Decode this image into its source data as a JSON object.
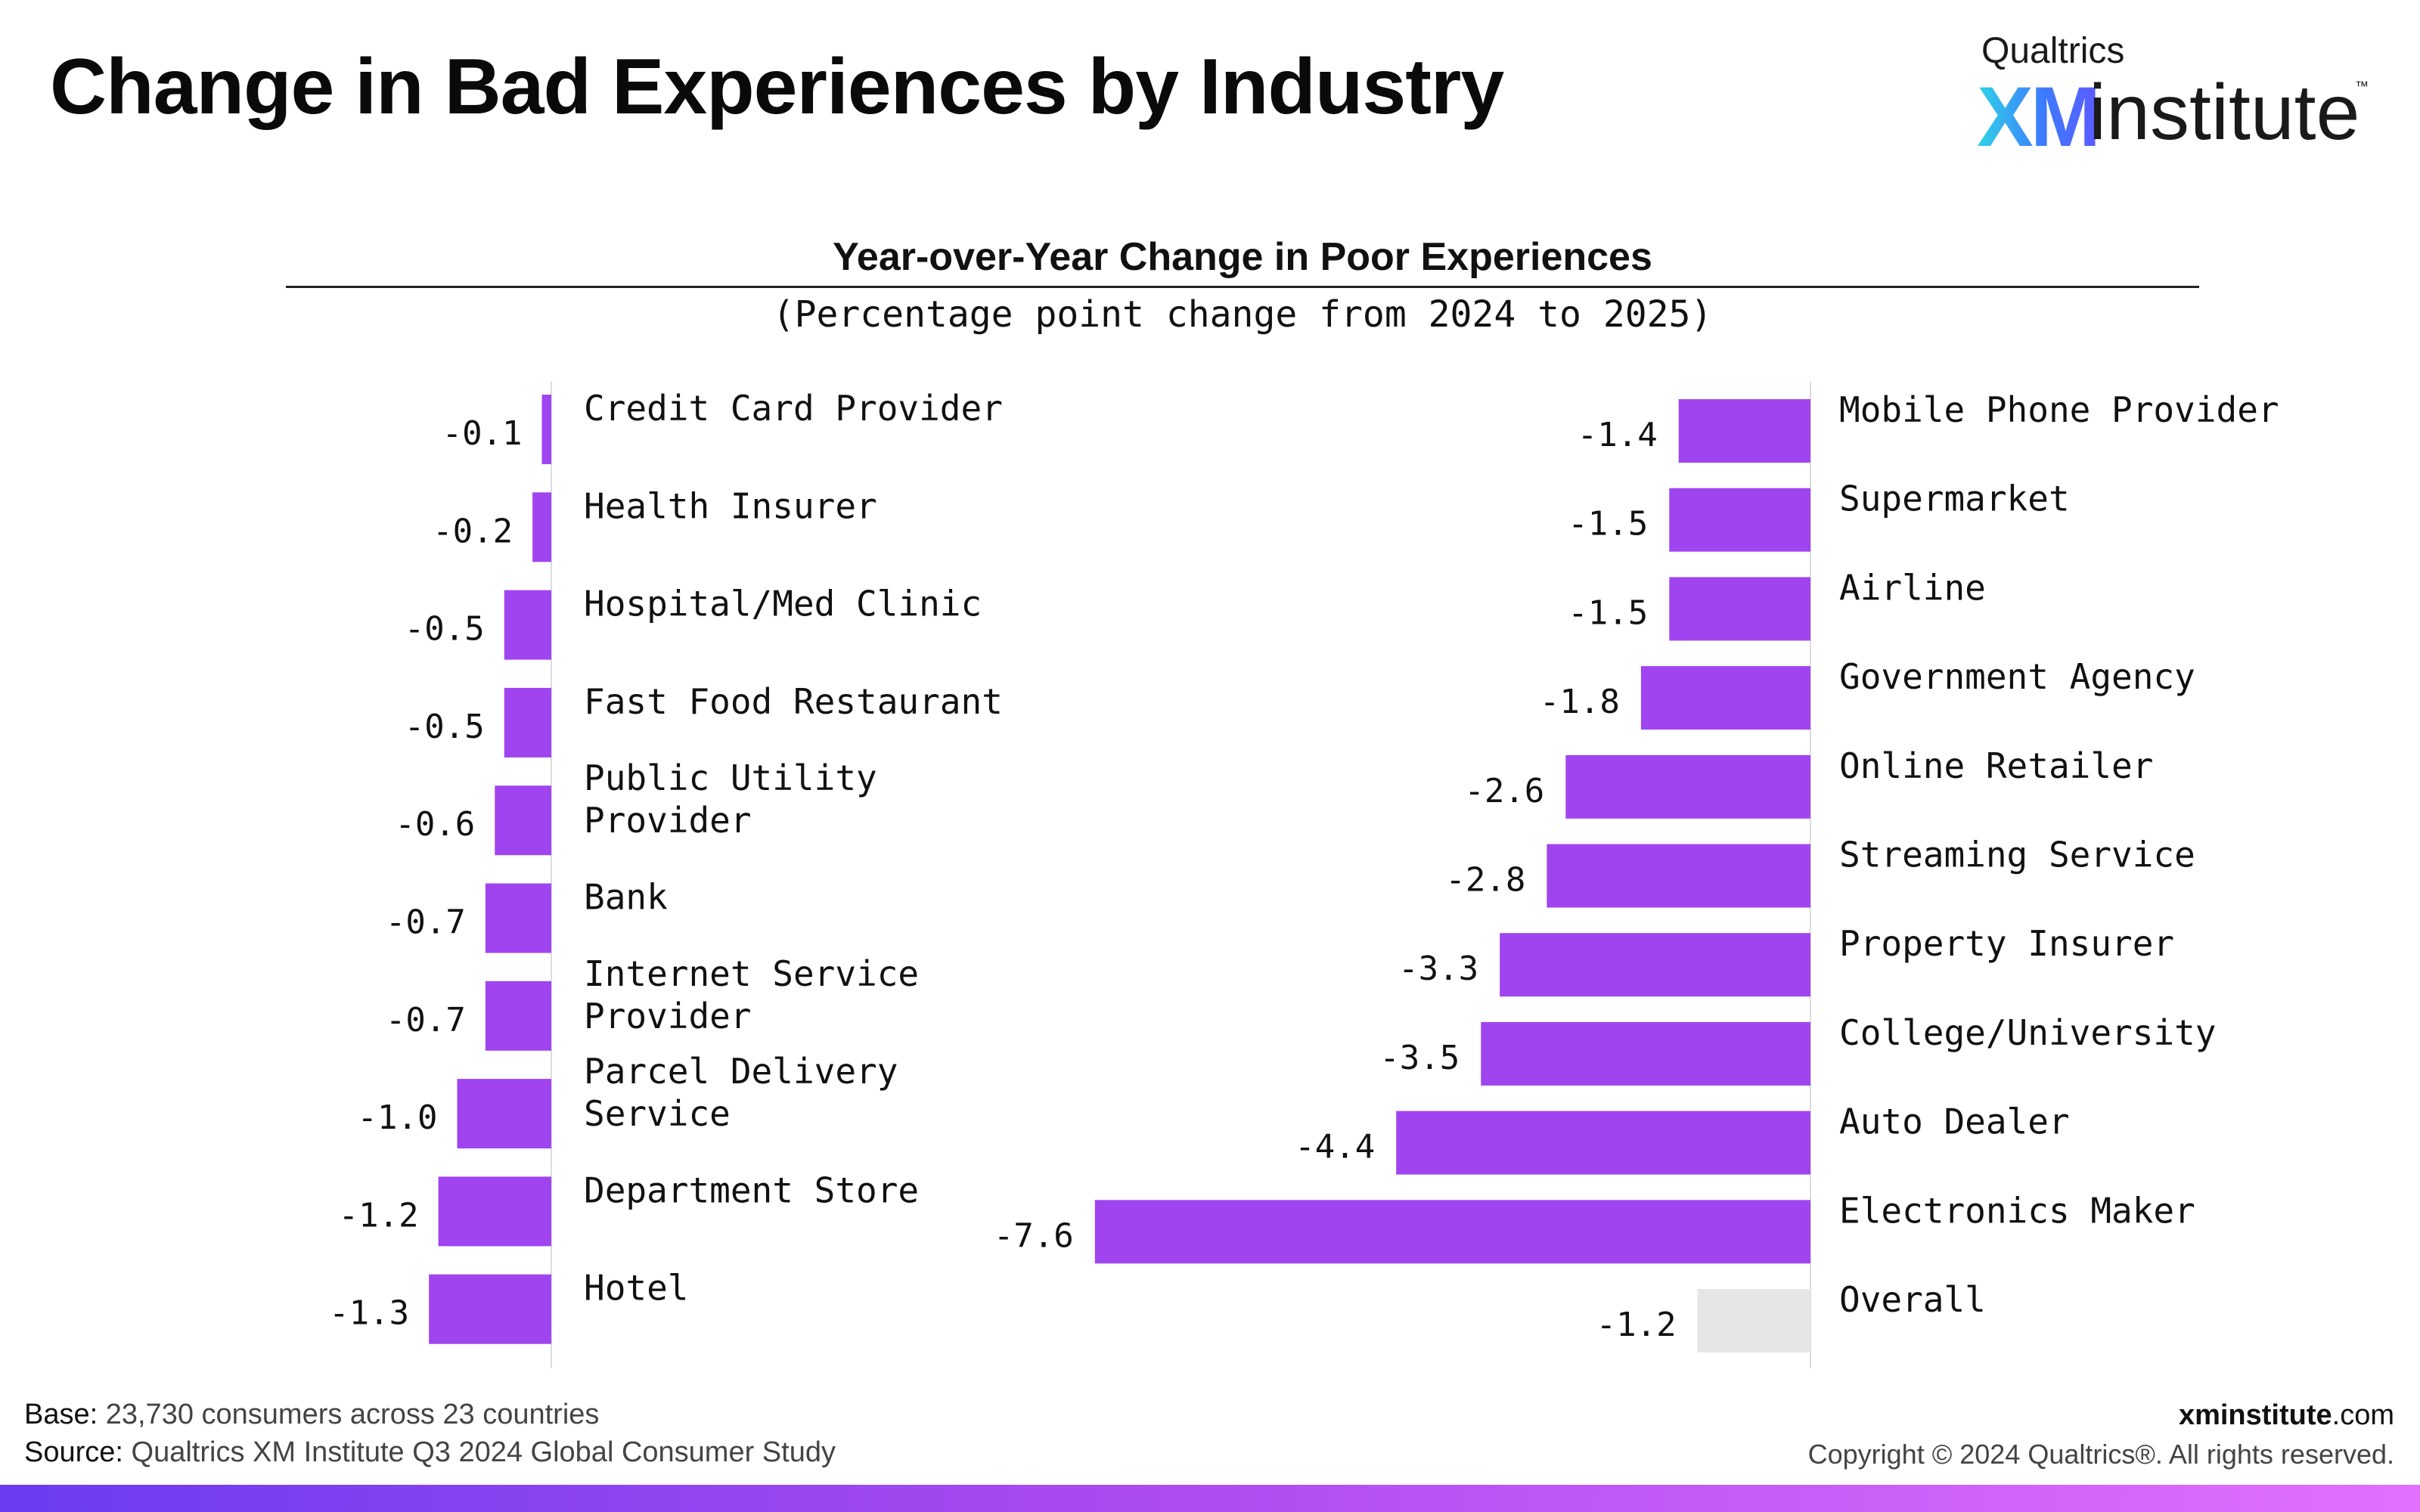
{
  "page": {
    "title": "Change in Bad Experiences by Industry"
  },
  "logo": {
    "top_text": "Qualtrics",
    "xm_text": "XM",
    "institute_text": "institute",
    "tm": "™"
  },
  "chart_data": {
    "type": "bar",
    "orientation": "horizontal",
    "title": "Year-over-Year Change in Poor Experiences",
    "subtitle": "(Percentage point change from 2024 to 2025)",
    "colors": {
      "bar": "#a044f0",
      "overall": "#e6e6e6",
      "axis": "#dddddd"
    },
    "panels": [
      {
        "categories": [
          "Credit Card Provider",
          "Health Insurer",
          "Hospital/Med Clinic",
          "Fast Food Restaurant",
          "Public Utility Provider",
          "Bank",
          "Internet Service Provider",
          "Parcel Delivery Service",
          "Department Store",
          "Hotel"
        ],
        "values": [
          -0.1,
          -0.2,
          -0.5,
          -0.5,
          -0.6,
          -0.7,
          -0.7,
          -1.0,
          -1.2,
          -1.3
        ],
        "value_labels": [
          "-0.1",
          "-0.2",
          "-0.5",
          "-0.5",
          "-0.6",
          "-0.7",
          "-0.7",
          "-1.0",
          "-1.2",
          "-1.3"
        ],
        "highlight": []
      },
      {
        "categories": [
          "Mobile Phone Provider",
          "Supermarket",
          "Airline",
          "Government Agency",
          "Online Retailer",
          "Streaming Service",
          "Property Insurer",
          "College/University",
          "Auto Dealer",
          "Electronics Maker",
          "Overall"
        ],
        "values": [
          -1.4,
          -1.5,
          -1.5,
          -1.8,
          -2.6,
          -2.8,
          -3.3,
          -3.5,
          -4.4,
          -7.6,
          -1.2
        ],
        "value_labels": [
          "-1.4",
          "-1.5",
          "-1.5",
          "-1.8",
          "-2.6",
          "-2.8",
          "-3.3",
          "-3.5",
          "-4.4",
          "-7.6",
          "-1.2"
        ],
        "highlight": [
          "Overall"
        ]
      }
    ]
  },
  "footer": {
    "base_label": "Base:",
    "base_text": "23,730 consumers across 23 countries",
    "source_label": "Source:",
    "source_text": "Qualtrics XM Institute Q3 2024 Global Consumer Study",
    "site_bold": "xminstitute",
    "site_rest": ".com",
    "copyright": "Copyright © 2024 Qualtrics®. All rights reserved."
  }
}
